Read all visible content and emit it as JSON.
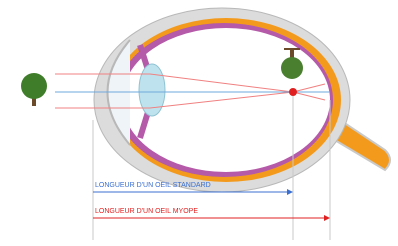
{
  "labels": {
    "standard": "LONGUEUR D'UN OEIL STANDARD",
    "myope": "LONGUEUR D'UN OEIL MYOPE"
  }
}
